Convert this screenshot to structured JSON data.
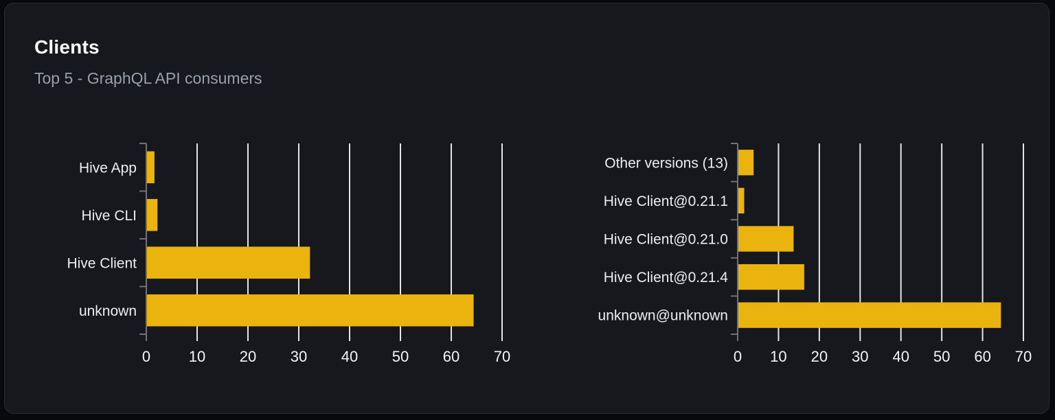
{
  "card": {
    "title": "Clients",
    "subtitle": "Top 5 - GraphQL API consumers"
  },
  "colors": {
    "bar": "#eab30d",
    "grid": "#e3e5ec",
    "axis": "#6e727b",
    "category_label": "#eceef1",
    "tick_label": "#f4f5f7",
    "card_bg": "#16181d",
    "page_bg": "#08090c",
    "title": "#ffffff",
    "subtitle": "#9aa0aa"
  },
  "chart_data": [
    {
      "type": "bar",
      "orientation": "horizontal",
      "title": "",
      "categories": [
        "Hive App",
        "Hive CLI",
        "Hive Client",
        "unknown"
      ],
      "values": [
        1.6,
        2.2,
        32.2,
        64.4
      ],
      "xlabel": "",
      "ylabel": "",
      "xlim": [
        0,
        70
      ],
      "xticks": [
        0,
        10,
        20,
        30,
        40,
        50,
        60,
        70
      ],
      "grid": true,
      "legend": false
    },
    {
      "type": "bar",
      "orientation": "horizontal",
      "title": "",
      "categories": [
        "Other versions (13)",
        "Hive Client@0.21.1",
        "Hive Client@0.21.0",
        "Hive Client@0.21.4",
        "unknown@unknown"
      ],
      "values": [
        3.9,
        1.6,
        13.7,
        16.3,
        64.5
      ],
      "xlabel": "",
      "ylabel": "",
      "xlim": [
        0,
        70
      ],
      "xticks": [
        0,
        10,
        20,
        30,
        40,
        50,
        60,
        70
      ],
      "grid": true,
      "legend": false
    }
  ]
}
